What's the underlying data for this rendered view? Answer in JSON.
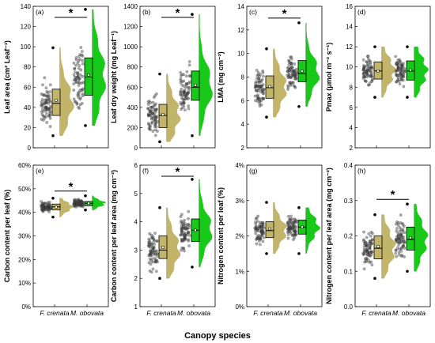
{
  "figure": {
    "xlabel": "Canopy species",
    "categories": [
      "F. crenata",
      "M. obovata"
    ],
    "colors": {
      "F. crenata": "#c2b56a",
      "M. obovata": "#19c919",
      "points": "#555555"
    }
  },
  "chart_data": [
    {
      "panel": "(a)",
      "type": "raincloud",
      "ylabel": "Leaf area (cm² Leaf⁻¹)",
      "ylim": [
        0,
        140
      ],
      "yticks": [
        "0",
        "20",
        "40",
        "60",
        "80",
        "100",
        "120",
        "140"
      ],
      "significance": "*",
      "series": [
        {
          "name": "F. crenata",
          "min": 12,
          "q1": 32,
          "median": 44,
          "q3": 58,
          "max": 99,
          "mean": 47
        },
        {
          "name": "M. obovata",
          "min": 22,
          "q1": 52,
          "median": 70,
          "q3": 89,
          "max": 137,
          "mean": 72
        }
      ]
    },
    {
      "panel": "(b)",
      "type": "raincloud",
      "ylabel": "Leaf dry weight (mg Leaf⁻¹)",
      "ylim": [
        0,
        1400
      ],
      "yticks": [
        "0",
        "200",
        "400",
        "600",
        "800",
        "1000",
        "1200",
        "1400"
      ],
      "significance": "*",
      "series": [
        {
          "name": "F. crenata",
          "min": 60,
          "q1": 200,
          "median": 320,
          "q3": 430,
          "max": 730,
          "mean": 330
        },
        {
          "name": "M. obovata",
          "min": 120,
          "q1": 470,
          "median": 600,
          "q3": 760,
          "max": 1320,
          "mean": 620
        }
      ]
    },
    {
      "panel": "(c)",
      "type": "raincloud",
      "ylabel": "LMA (mg cm⁻²)",
      "ylim": [
        2,
        14
      ],
      "yticks": [
        "2",
        "4",
        "6",
        "8",
        "10",
        "12",
        "14"
      ],
      "significance": "*",
      "series": [
        {
          "name": "F. crenata",
          "min": 4.6,
          "q1": 6.2,
          "median": 7.1,
          "q3": 8.1,
          "max": 10.4,
          "mean": 7.2
        },
        {
          "name": "M. obovata",
          "min": 5.5,
          "q1": 7.6,
          "median": 8.3,
          "q3": 9.4,
          "max": 12.6,
          "mean": 8.5
        }
      ]
    },
    {
      "panel": "(d)",
      "type": "raincloud",
      "ylabel": "Pmax (μmol m⁻² s⁻¹)",
      "ylim": [
        2,
        16
      ],
      "yticks": [
        "2",
        "4",
        "6",
        "8",
        "10",
        "12",
        "14",
        "16"
      ],
      "significance": "",
      "series": [
        {
          "name": "F. crenata",
          "min": 7.0,
          "q1": 8.8,
          "median": 9.6,
          "q3": 10.5,
          "max": 12.0,
          "mean": 9.6
        },
        {
          "name": "M. obovata",
          "min": 7.0,
          "q1": 8.7,
          "median": 9.6,
          "q3": 10.6,
          "max": 12.0,
          "mean": 9.7
        }
      ]
    },
    {
      "panel": "(e)",
      "type": "raincloud",
      "ylabel": "Carbon content per leaf (%)",
      "ylim": [
        0,
        60
      ],
      "yticks": [
        "0%",
        "10%",
        "20%",
        "30%",
        "40%",
        "50%",
        "60%"
      ],
      "significance": "*",
      "series": [
        {
          "name": "F. crenata",
          "min": 38,
          "q1": 41,
          "median": 42.3,
          "q3": 43.5,
          "max": 46,
          "mean": 42.2
        },
        {
          "name": "M. obovata",
          "min": 41,
          "q1": 42.8,
          "median": 43.8,
          "q3": 44.6,
          "max": 47,
          "mean": 43.8
        }
      ]
    },
    {
      "panel": "(f)",
      "type": "raincloud",
      "ylabel": "Carbon content per leaf area (mg cm⁻²)",
      "ylim": [
        1,
        6
      ],
      "yticks": [
        "1",
        "2",
        "3",
        "4",
        "5",
        "6"
      ],
      "significance": "*",
      "series": [
        {
          "name": "F. crenata",
          "min": 2.0,
          "q1": 2.7,
          "median": 3.0,
          "q3": 3.5,
          "max": 4.5,
          "mean": 3.1
        },
        {
          "name": "M. obovata",
          "min": 2.4,
          "q1": 3.3,
          "median": 3.7,
          "q3": 4.1,
          "max": 5.5,
          "mean": 3.7
        }
      ]
    },
    {
      "panel": "(g)",
      "type": "raincloud",
      "ylabel": "Nitrogen content per leaf (%)",
      "ylim": [
        0,
        4
      ],
      "yticks": [
        "0%",
        "1%",
        "2%",
        "3%",
        "4%"
      ],
      "significance": "",
      "series": [
        {
          "name": "F. crenata",
          "min": 1.5,
          "q1": 1.95,
          "median": 2.15,
          "q3": 2.4,
          "max": 2.95,
          "mean": 2.2
        },
        {
          "name": "M. obovata",
          "min": 1.5,
          "q1": 2.05,
          "median": 2.25,
          "q3": 2.45,
          "max": 2.8,
          "mean": 2.25
        }
      ]
    },
    {
      "panel": "(h)",
      "type": "raincloud",
      "ylabel": "Nitrogen content per leaf area (mg cm⁻²)",
      "ylim": [
        0,
        0.4
      ],
      "yticks": [
        "0.0",
        "0.1",
        "0.2",
        "0.3",
        "0.4"
      ],
      "significance": "*",
      "series": [
        {
          "name": "F. crenata",
          "min": 0.08,
          "q1": 0.135,
          "median": 0.165,
          "q3": 0.2,
          "max": 0.26,
          "mean": 0.17
        },
        {
          "name": "M. obovata",
          "min": 0.1,
          "q1": 0.16,
          "median": 0.19,
          "q3": 0.225,
          "max": 0.29,
          "mean": 0.195
        }
      ]
    }
  ]
}
